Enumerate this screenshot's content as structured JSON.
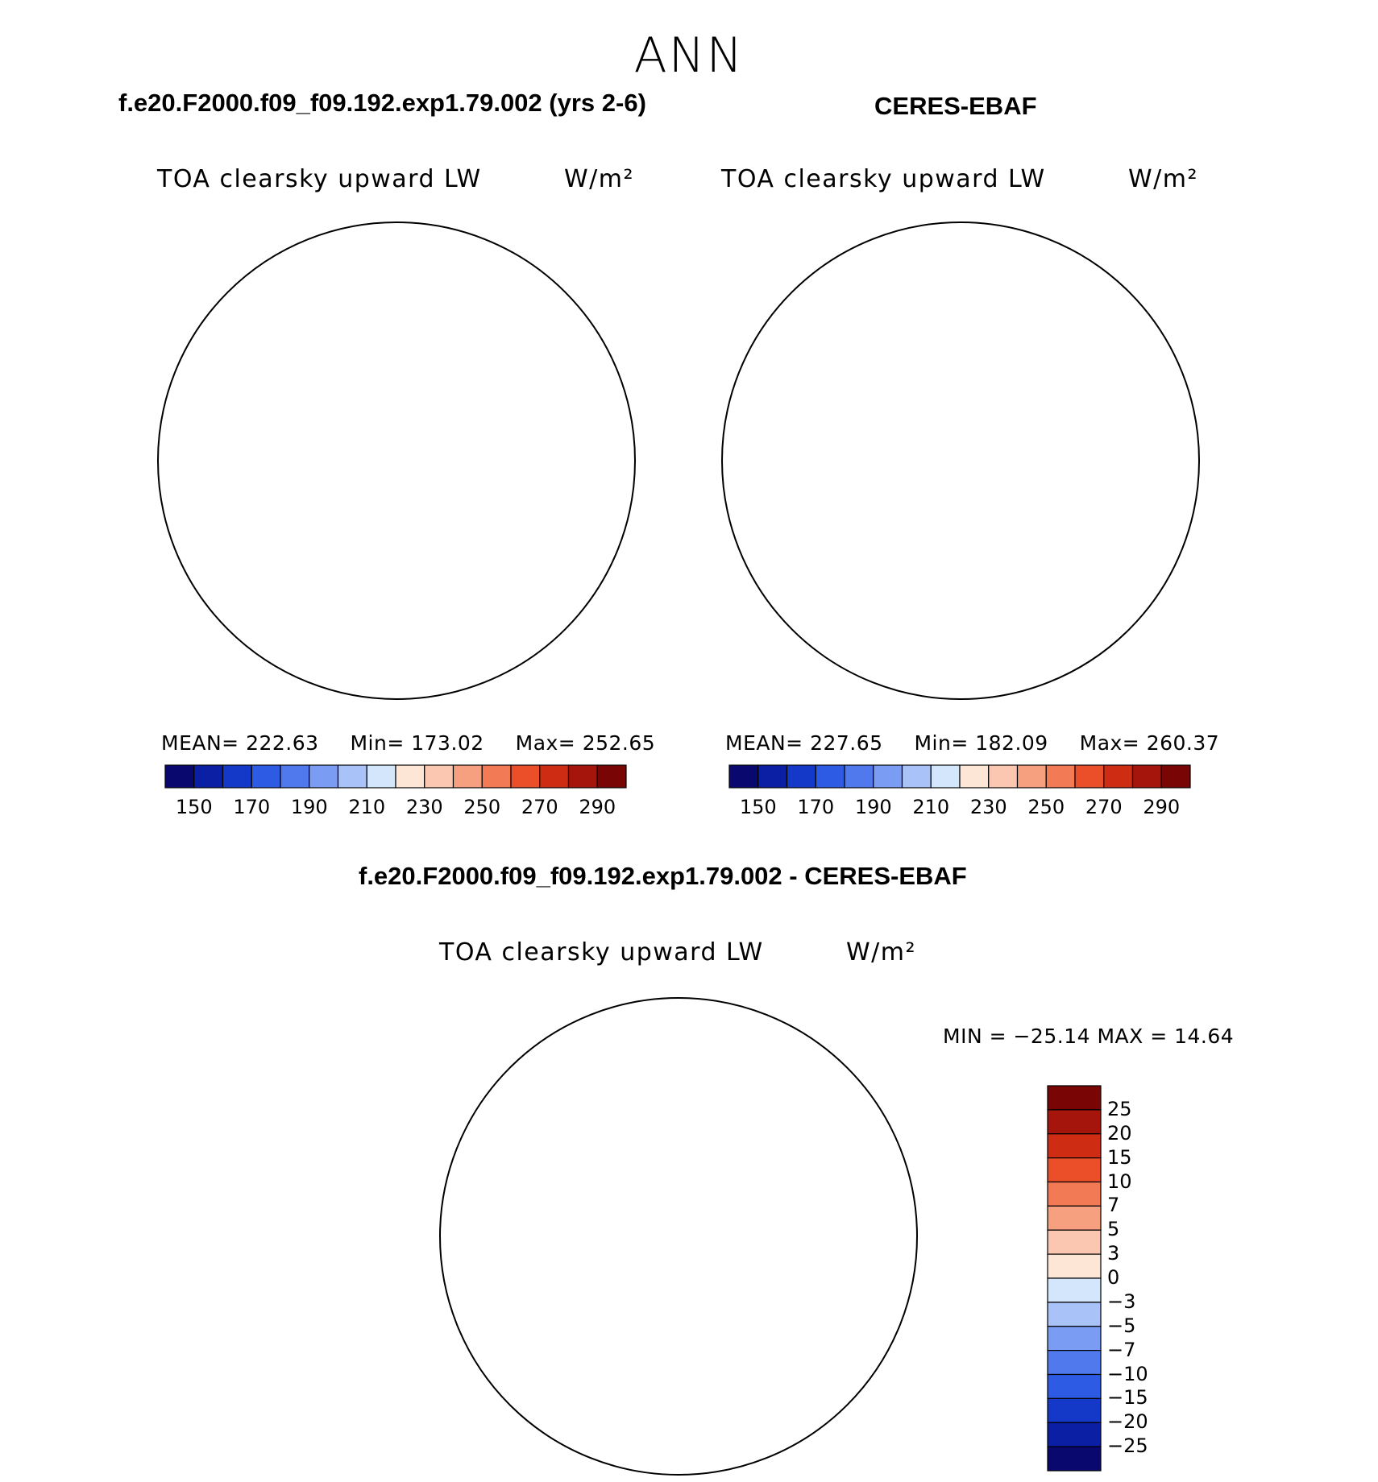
{
  "page": {
    "main_title": "ANN",
    "left_header": "f.e20.F2000.f09_f09.192.exp1.79.002 (yrs 2-6)",
    "right_header": "CERES-EBAF",
    "diff_header": "f.e20.F2000.f09_f09.192.exp1.79.002 - CERES-EBAF"
  },
  "chart_data": [
    {
      "type": "heatmap",
      "projection": "polar-stereographic",
      "title": "TOA clearsky upward LW",
      "units": "W/m²",
      "stats": {
        "mean_label": "MEAN=",
        "mean": "222.63",
        "min_label": "Min=",
        "min": "173.02",
        "max_label": "Max=",
        "max": "252.65"
      },
      "colorbar_levels": [
        150,
        160,
        170,
        180,
        190,
        200,
        210,
        220,
        230,
        240,
        250,
        260,
        270,
        280,
        290
      ],
      "colorbar_tick_labels": [
        "150",
        "170",
        "190",
        "210",
        "230",
        "250",
        "270",
        "290"
      ],
      "colorbar_colors": [
        "#08086e",
        "#0a1fa3",
        "#1438c8",
        "#2e5be4",
        "#4f79ec",
        "#7a9cf2",
        "#a9c3f8",
        "#d3e6fb",
        "#fde6d6",
        "#fbc7b0",
        "#f7a07f",
        "#f27a55",
        "#ea4f2a",
        "#cf2c14",
        "#a5150c",
        "#7a0505"
      ]
    },
    {
      "type": "heatmap",
      "projection": "polar-stereographic",
      "title": "TOA clearsky upward LW",
      "units": "W/m²",
      "stats": {
        "mean_label": "MEAN=",
        "mean": "227.65",
        "min_label": "Min=",
        "min": "182.09",
        "max_label": "Max=",
        "max": "260.37"
      },
      "colorbar_levels": [
        150,
        160,
        170,
        180,
        190,
        200,
        210,
        220,
        230,
        240,
        250,
        260,
        270,
        280,
        290
      ],
      "colorbar_tick_labels": [
        "150",
        "170",
        "190",
        "210",
        "230",
        "250",
        "270",
        "290"
      ],
      "colorbar_colors": [
        "#08086e",
        "#0a1fa3",
        "#1438c8",
        "#2e5be4",
        "#4f79ec",
        "#7a9cf2",
        "#a9c3f8",
        "#d3e6fb",
        "#fde6d6",
        "#fbc7b0",
        "#f7a07f",
        "#f27a55",
        "#ea4f2a",
        "#cf2c14",
        "#a5150c",
        "#7a0505"
      ]
    },
    {
      "type": "heatmap",
      "projection": "polar-stereographic",
      "title": "TOA clearsky upward LW",
      "units": "W/m²",
      "stats_text": "MIN = −25.14 MAX =   14.64",
      "colorbar_tick_labels": [
        "25",
        "20",
        "15",
        "10",
        "7",
        "5",
        "3",
        "0",
        "−3",
        "−5",
        "−7",
        "−10",
        "−15",
        "−20",
        "−25"
      ],
      "colorbar_colors": [
        "#7a0505",
        "#a5150c",
        "#cf2c14",
        "#ea4f2a",
        "#f27a55",
        "#f7a07f",
        "#fbc7b0",
        "#fde6d6",
        "#d3e6fb",
        "#a9c3f8",
        "#7a9cf2",
        "#4f79ec",
        "#2e5be4",
        "#1438c8",
        "#0a1fa3",
        "#08086e"
      ]
    }
  ]
}
